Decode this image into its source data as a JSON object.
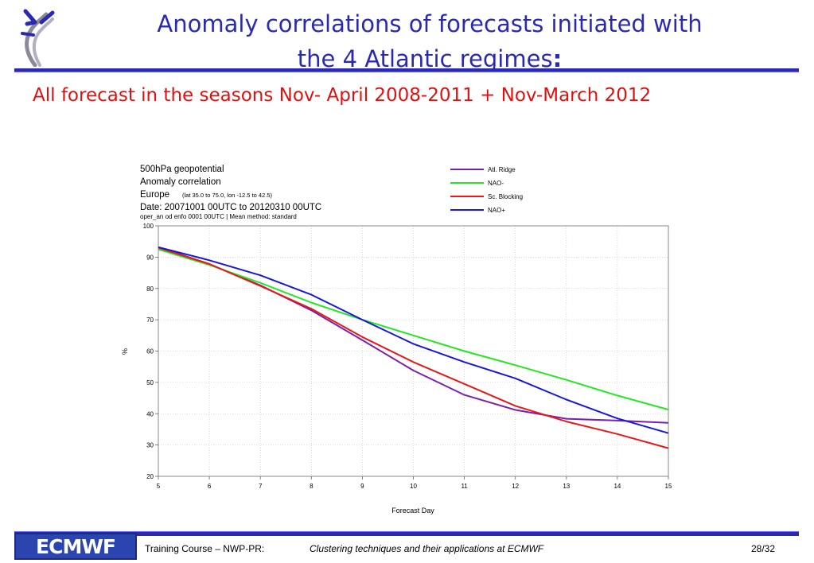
{
  "slide": {
    "title_line1": "Anomaly correlations of forecasts initiated with",
    "title_line2": "the 4 Atlantic regimes",
    "title_colon": ":",
    "subtitle": "All forecast in the seasons Nov- April 2008-2011 + Nov-March 2012"
  },
  "footer": {
    "logo_text": "ECMWF",
    "course": "Training Course – NWP-PR:",
    "topic": "Clustering techniques and their applications at ECMWF",
    "page": "28/32"
  },
  "chart_data": {
    "type": "line",
    "title_lines": [
      "500hPa geopotential",
      "Anomaly correlation",
      "Europe",
      "Date: 20071001 00UTC to 20120310 00UTC"
    ],
    "region_detail": "(lat  35.0 to 75.0, lon  -12.5 to  42.5)",
    "method_line": "oper_an od enfo 0001 00UTC | Mean method: standard",
    "xlabel": "Forecast Day",
    "ylabel": "%",
    "xlim": [
      5,
      15
    ],
    "ylim": [
      20,
      100
    ],
    "x_ticks": [
      "5",
      "6",
      "7",
      "8",
      "9",
      "10",
      "11",
      "12",
      "13",
      "14",
      "15"
    ],
    "y_ticks": [
      "20",
      "30",
      "40",
      "50",
      "60",
      "70",
      "80",
      "90",
      "100"
    ],
    "grid": true,
    "legend_position": "top-right",
    "x": [
      5,
      6,
      7,
      8,
      9,
      10,
      11,
      12,
      13,
      14,
      15
    ],
    "series": [
      {
        "name": "Atl. Ridge",
        "color": "#7a1fb0",
        "values": [
          93.2,
          87.8,
          81.0,
          73.0,
          63.5,
          53.8,
          46.0,
          41.2,
          38.4,
          37.8,
          37.1
        ]
      },
      {
        "name": "NAO-",
        "color": "#22e822",
        "values": [
          92.5,
          87.5,
          81.8,
          75.5,
          70.0,
          65.0,
          60.0,
          55.5,
          50.8,
          45.8,
          41.3
        ]
      },
      {
        "name": "Sc. Blocking",
        "color": "#e81818",
        "values": [
          93.0,
          87.8,
          80.8,
          73.5,
          64.5,
          56.5,
          49.5,
          42.5,
          37.5,
          33.5,
          29.0
        ]
      },
      {
        "name": "NAO+",
        "color": "#1818d8",
        "values": [
          93.2,
          89.0,
          84.2,
          78.0,
          70.0,
          62.3,
          56.5,
          51.3,
          44.5,
          38.5,
          33.8
        ]
      }
    ]
  }
}
